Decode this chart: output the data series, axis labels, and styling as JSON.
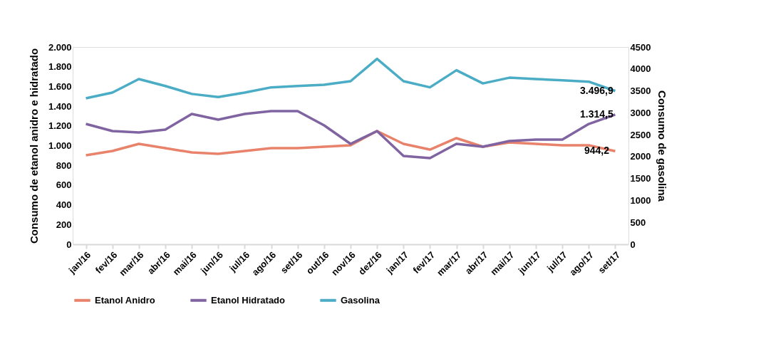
{
  "chart_data": {
    "type": "line",
    "ylabel": "Consumo de etanol anidro e hidratado",
    "y2label": "Consumo de gasolina",
    "categories": [
      "jan/16",
      "fev/16",
      "mar/16",
      "abr/16",
      "mai/16",
      "jun/16",
      "jul/16",
      "ago/16",
      "set/16",
      "out/16",
      "nov/16",
      "dez/16",
      "jan/17",
      "fev/17",
      "mar/17",
      "abr/17",
      "mai/17",
      "jun/17",
      "jul/17",
      "ago/17",
      "set/17"
    ],
    "series": [
      {
        "name": "Etanol Anidro",
        "color": "#e8826b",
        "values": [
          903,
          946,
          1018,
          975,
          931,
          917,
          946,
          975,
          975,
          989,
          1004,
          1148,
          1018,
          960,
          1076,
          989,
          1033,
          1018,
          1004,
          1004,
          944.2
        ],
        "value_labels": [
          null,
          null,
          null,
          null,
          null,
          null,
          null,
          null,
          null,
          null,
          null,
          null,
          null,
          null,
          null,
          null,
          null,
          null,
          null,
          null,
          "944,2"
        ]
      },
      {
        "name": "Etanol Hidratado",
        "color": "#8064a2",
        "values": [
          1220,
          1148,
          1134,
          1162,
          1321,
          1264,
          1321,
          1350,
          1350,
          1206,
          1018,
          1148,
          895,
          874,
          1018,
          989,
          1047,
          1061,
          1061,
          1220,
          1314.5
        ],
        "value_labels": [
          null,
          null,
          null,
          null,
          null,
          null,
          null,
          null,
          null,
          null,
          null,
          null,
          null,
          null,
          null,
          null,
          null,
          null,
          null,
          null,
          "1.314,5"
        ]
      },
      {
        "name": "Gasolina",
        "color": "#4bacc6",
        "axis": "y2",
        "values": [
          3330,
          3460,
          3770,
          3610,
          3430,
          3360,
          3460,
          3580,
          3610,
          3640,
          3720,
          4230,
          3720,
          3580,
          3970,
          3670,
          3800,
          3770,
          3740,
          3710,
          3496.9
        ],
        "value_labels": [
          null,
          null,
          null,
          null,
          null,
          null,
          null,
          null,
          null,
          null,
          null,
          null,
          null,
          null,
          null,
          null,
          null,
          null,
          null,
          null,
          "3.496,9"
        ]
      }
    ],
    "ylim": [
      0,
      2000
    ],
    "yticks": [
      0,
      200,
      400,
      600,
      800,
      {
        "value": 1000,
        "label": "1.000"
      },
      {
        "value": 1200,
        "label": "1.200"
      },
      {
        "value": 1400,
        "label": "1.400"
      },
      {
        "value": 1600,
        "label": "1.600"
      },
      {
        "value": 1800,
        "label": "1.800"
      },
      {
        "value": 2000,
        "label": "2.000"
      }
    ],
    "y2lim": [
      0,
      4500
    ],
    "y2ticks": [
      0,
      500,
      1000,
      1500,
      2000,
      2500,
      3000,
      3500,
      4000,
      4500
    ],
    "grid": false,
    "legend": "bottom",
    "marker": "none",
    "line_style": "solid"
  }
}
